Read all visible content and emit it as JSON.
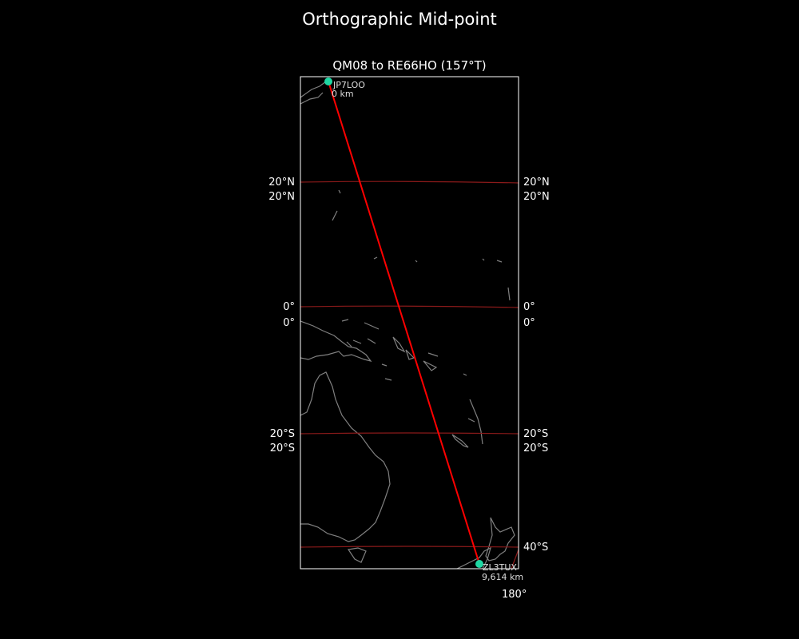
{
  "figure": {
    "title": "Orthographic Mid-point",
    "subtitle": "QM08 to RE66HO (157°T)"
  },
  "map": {
    "projection": "orthographic",
    "colors": {
      "background": "#000000",
      "coastline": "#808080",
      "gridline": "#8b1a1a",
      "path": "#ff0000",
      "station": "#1fd8a4",
      "frame": "#ffffff"
    },
    "lat_labels_left": [
      "20°N",
      "20°N",
      "0°",
      "0°",
      "20°S",
      "20°S"
    ],
    "lat_labels_right": [
      "20°N",
      "20°N",
      "0°",
      "0°",
      "20°S",
      "20°S",
      "40°S"
    ],
    "lon_labels": [
      "180°"
    ],
    "stations": [
      {
        "call": "JP7LOO",
        "distance": "0 km"
      },
      {
        "call": "ZL3TUX",
        "distance": "9,614 km"
      }
    ]
  }
}
